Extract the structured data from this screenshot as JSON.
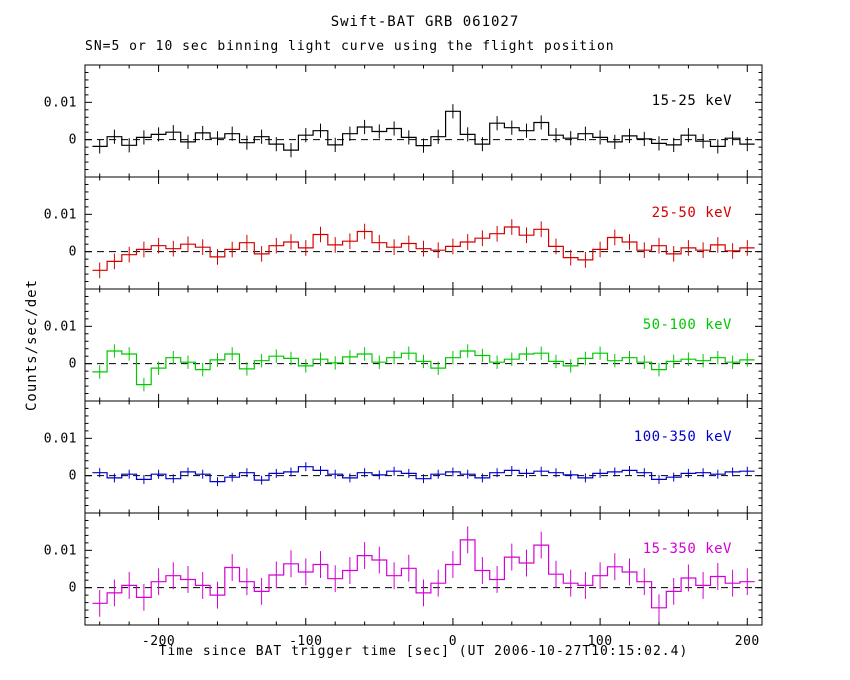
{
  "title": "Swift-BAT GRB 061027",
  "subtitle": "SN=5 or 10 sec binning light curve using the flight position",
  "xlabel": "Time since BAT trigger time [sec] (UT 2006-10-27T10:15:02.4)",
  "ylabel": "Counts/sec/det",
  "chart_data": {
    "type": "line",
    "subtype": "step-histogram-with-errorbars",
    "grid": false,
    "legend_position": "inside-top-right-per-panel",
    "xlim": [
      -250,
      210
    ],
    "ylim": [
      -0.01,
      0.02
    ],
    "x_ticks_major": [
      -200,
      -100,
      0,
      100,
      200
    ],
    "x_minor_step": 20,
    "y_ticks_labeled": [
      {
        "value": 0,
        "label": "0"
      },
      {
        "value": 0.01,
        "label": "0.01"
      }
    ],
    "y_minor_step": 0.002,
    "zero_line": {
      "value": 0,
      "style": "dashed",
      "color": "#000000"
    },
    "bin_start": -245,
    "bin_width": 10,
    "series": [
      {
        "name": "15-25 keV",
        "color": "#000000",
        "err": 0.0019,
        "values": [
          -0.0018,
          0.0008,
          -0.0015,
          0.0006,
          0.0014,
          0.002,
          -0.0006,
          0.0018,
          0.0004,
          0.0016,
          -0.0008,
          0.0008,
          -0.0012,
          -0.0028,
          0.0012,
          0.0024,
          -0.0014,
          0.0016,
          0.0034,
          0.0022,
          0.003,
          0.0006,
          -0.0016,
          0.0008,
          0.0076,
          0.0014,
          -0.0012,
          0.0044,
          0.0032,
          0.0024,
          0.0046,
          0.0012,
          0.0004,
          0.0016,
          0.0006,
          -0.0006,
          0.001,
          0.0002,
          -0.001,
          -0.0014,
          0.0012,
          -0.0004,
          -0.0018,
          0.0004,
          -0.0012
        ]
      },
      {
        "name": "25-50 keV",
        "color": "#d40000",
        "err": 0.0021,
        "values": [
          -0.005,
          -0.0026,
          -0.0008,
          0.0006,
          0.0016,
          0.0008,
          0.002,
          0.0012,
          -0.0014,
          0.0006,
          0.0024,
          -0.0006,
          0.0016,
          0.0026,
          0.001,
          0.0046,
          0.0018,
          0.0028,
          0.0054,
          0.0024,
          0.0012,
          0.0022,
          0.0008,
          0.0004,
          0.0014,
          0.0026,
          0.0036,
          0.0048,
          0.0066,
          0.0044,
          0.006,
          0.0014,
          -0.0016,
          -0.0022,
          0.0006,
          0.0038,
          0.0026,
          0.0004,
          0.0016,
          -0.0006,
          0.001,
          0.0004,
          0.0018,
          0.0002,
          0.001
        ]
      },
      {
        "name": "50-100 keV",
        "color": "#00c800",
        "err": 0.0018,
        "values": [
          -0.0022,
          0.0034,
          0.0026,
          -0.0056,
          -0.0012,
          0.0016,
          0.0004,
          -0.0016,
          0.001,
          0.0026,
          -0.0014,
          0.0008,
          0.002,
          0.0014,
          -0.0006,
          0.0012,
          0.0002,
          0.0018,
          0.0026,
          0.0004,
          0.0016,
          0.0028,
          0.0006,
          -0.0012,
          0.0016,
          0.0034,
          0.0022,
          0.0004,
          0.0012,
          0.0026,
          0.0028,
          0.0006,
          -0.0006,
          0.0014,
          0.0028,
          0.0008,
          0.0016,
          0.0004,
          -0.0016,
          0.0006,
          0.0012,
          0.0008,
          0.0016,
          0.0004,
          0.001
        ]
      },
      {
        "name": "100-350 keV",
        "color": "#0000c8",
        "err": 0.0012,
        "values": [
          0.0008,
          -0.0006,
          0.0004,
          -0.001,
          0.0004,
          -0.0008,
          0.001,
          0.0004,
          -0.0016,
          -0.0004,
          0.0008,
          -0.0012,
          0.0006,
          0.001,
          0.0024,
          0.0014,
          0.0004,
          -0.0006,
          0.0008,
          0.0002,
          0.0012,
          0.0006,
          -0.0008,
          0.0004,
          0.001,
          0.0004,
          -0.0006,
          0.0008,
          0.0014,
          0.0006,
          0.0012,
          0.0008,
          0.0002,
          -0.0006,
          0.0006,
          0.001,
          0.0014,
          0.0008,
          -0.001,
          -0.0004,
          0.0006,
          0.0008,
          0.0004,
          0.001,
          0.0012
        ]
      },
      {
        "name": "15-350 keV",
        "color": "#d400d4",
        "err": 0.0036,
        "values": [
          -0.0042,
          -0.0014,
          0.0006,
          -0.0026,
          0.0016,
          0.0032,
          0.0022,
          0.0006,
          -0.002,
          0.0054,
          0.0016,
          -0.001,
          0.0034,
          0.0064,
          0.0042,
          0.0062,
          0.0024,
          0.0046,
          0.0086,
          0.0074,
          0.0032,
          0.0052,
          -0.0014,
          0.0012,
          0.0062,
          0.0128,
          0.0046,
          0.0022,
          0.0082,
          0.0066,
          0.0114,
          0.0036,
          0.0012,
          0.0006,
          0.0032,
          0.0056,
          0.0042,
          0.0016,
          -0.0054,
          -0.001,
          0.0026,
          0.0006,
          0.003,
          0.0012,
          0.0016
        ]
      }
    ]
  }
}
